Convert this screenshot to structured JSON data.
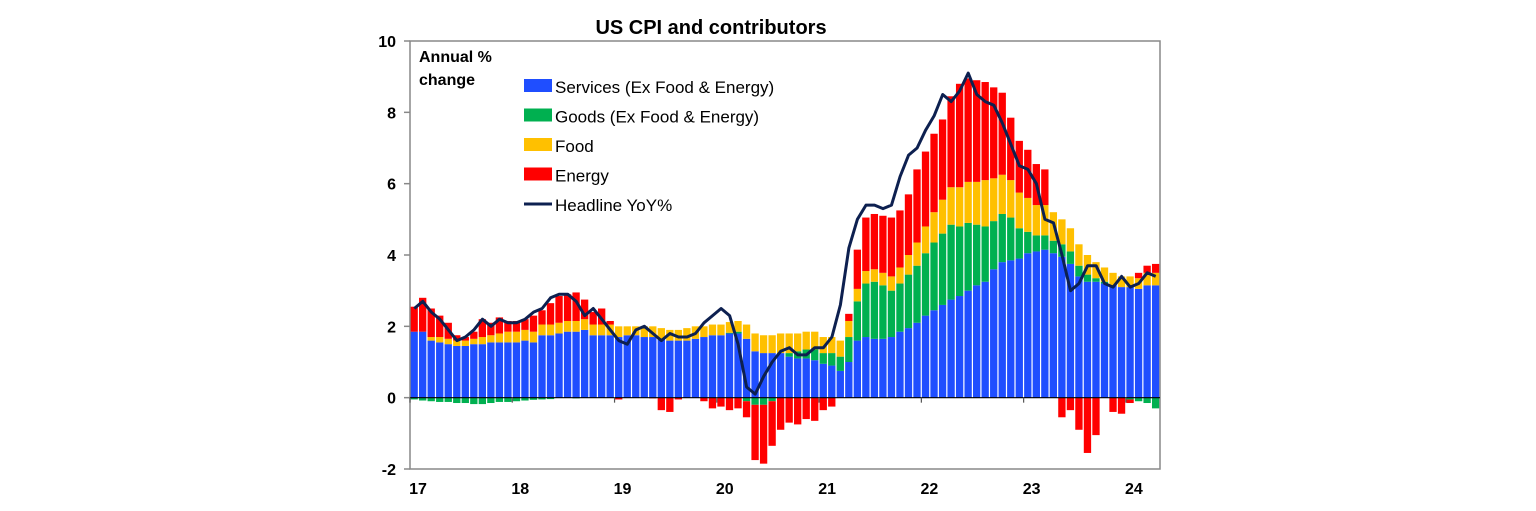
{
  "chart_data": {
    "type": "bar",
    "stacked": true,
    "title": "US CPI and contributors",
    "ylabel": "Annual % change",
    "xlabel": "",
    "ylim": [
      -2,
      10
    ],
    "yticks": [
      -2,
      0,
      2,
      4,
      6,
      8,
      10
    ],
    "xtick_labels": [
      "17",
      "18",
      "19",
      "20",
      "21",
      "22",
      "23",
      "24"
    ],
    "x_start": "2017-01",
    "frequency": "monthly",
    "legend_position": "top-left",
    "series": [
      {
        "name": "Services (Ex Food & Energy)",
        "color": "#1f4eff",
        "kind": "bar",
        "values": [
          1.85,
          1.85,
          1.6,
          1.55,
          1.5,
          1.45,
          1.45,
          1.5,
          1.5,
          1.55,
          1.55,
          1.55,
          1.55,
          1.6,
          1.55,
          1.75,
          1.75,
          1.8,
          1.85,
          1.85,
          1.9,
          1.75,
          1.75,
          1.75,
          1.7,
          1.75,
          1.75,
          1.7,
          1.7,
          1.65,
          1.6,
          1.6,
          1.6,
          1.65,
          1.7,
          1.75,
          1.75,
          1.8,
          1.8,
          1.65,
          1.3,
          1.25,
          1.25,
          1.25,
          1.15,
          1.1,
          1.1,
          1.05,
          0.95,
          0.9,
          0.75,
          1.0,
          1.6,
          1.7,
          1.65,
          1.65,
          1.7,
          1.85,
          1.95,
          2.1,
          2.3,
          2.45,
          2.6,
          2.75,
          2.85,
          3.0,
          3.15,
          3.25,
          3.6,
          3.8,
          3.85,
          3.9,
          4.05,
          4.1,
          4.15,
          4.05,
          3.95,
          3.75,
          3.4,
          3.25,
          3.25,
          3.2,
          3.15,
          3.1,
          3.1,
          3.05,
          3.15,
          3.15
        ]
      },
      {
        "name": "Goods (Ex Food & Energy)",
        "color": "#00b050",
        "kind": "bar",
        "values": [
          -0.05,
          -0.08,
          -0.1,
          -0.12,
          -0.12,
          -0.15,
          -0.15,
          -0.18,
          -0.18,
          -0.15,
          -0.12,
          -0.12,
          -0.1,
          -0.08,
          -0.06,
          -0.05,
          -0.04,
          0.0,
          0.0,
          -0.02,
          0.0,
          0.0,
          0.0,
          0.0,
          0.0,
          0.0,
          0.0,
          0.0,
          0.0,
          0.0,
          0.0,
          0.0,
          0.0,
          0.0,
          0.0,
          0.0,
          0.0,
          0.02,
          0.05,
          -0.1,
          -0.2,
          -0.2,
          -0.1,
          0.0,
          0.1,
          0.2,
          0.25,
          0.3,
          0.3,
          0.35,
          0.4,
          0.7,
          1.1,
          1.5,
          1.6,
          1.5,
          1.3,
          1.35,
          1.5,
          1.6,
          1.75,
          1.9,
          2.0,
          2.1,
          1.95,
          1.9,
          1.7,
          1.55,
          1.35,
          1.35,
          1.2,
          0.85,
          0.6,
          0.45,
          0.4,
          0.35,
          0.35,
          0.35,
          0.3,
          0.2,
          0.1,
          0.05,
          0.0,
          0.0,
          -0.05,
          -0.1,
          -0.15,
          -0.3
        ]
      },
      {
        "name": "Food",
        "color": "#ffc000",
        "kind": "bar",
        "values": [
          0.0,
          0.0,
          0.1,
          0.15,
          0.15,
          0.15,
          0.15,
          0.15,
          0.2,
          0.2,
          0.25,
          0.3,
          0.3,
          0.3,
          0.3,
          0.3,
          0.3,
          0.3,
          0.3,
          0.3,
          0.3,
          0.3,
          0.3,
          0.3,
          0.3,
          0.25,
          0.25,
          0.3,
          0.3,
          0.3,
          0.3,
          0.3,
          0.35,
          0.35,
          0.3,
          0.3,
          0.3,
          0.3,
          0.3,
          0.4,
          0.5,
          0.5,
          0.5,
          0.55,
          0.55,
          0.5,
          0.5,
          0.5,
          0.45,
          0.45,
          0.45,
          0.45,
          0.35,
          0.35,
          0.35,
          0.35,
          0.4,
          0.45,
          0.55,
          0.65,
          0.75,
          0.85,
          0.95,
          1.05,
          1.1,
          1.15,
          1.2,
          1.3,
          1.2,
          1.1,
          1.05,
          1.0,
          0.95,
          0.85,
          0.85,
          0.8,
          0.7,
          0.65,
          0.6,
          0.55,
          0.45,
          0.4,
          0.35,
          0.3,
          0.3,
          0.3,
          0.35,
          0.35
        ]
      },
      {
        "name": "Energy",
        "color": "#ff0000",
        "kind": "bar",
        "values": [
          0.7,
          0.95,
          0.8,
          0.6,
          0.45,
          0.15,
          0.1,
          0.2,
          0.5,
          0.35,
          0.45,
          0.3,
          0.3,
          0.3,
          0.45,
          0.4,
          0.6,
          0.75,
          0.75,
          0.8,
          0.55,
          0.35,
          0.45,
          0.1,
          -0.05,
          0.0,
          0.0,
          0.0,
          -0.02,
          -0.35,
          -0.4,
          -0.05,
          0.0,
          0.0,
          -0.1,
          -0.3,
          -0.25,
          -0.35,
          -0.3,
          -0.45,
          -1.55,
          -1.65,
          -1.25,
          -0.9,
          -0.7,
          -0.75,
          -0.6,
          -0.65,
          -0.35,
          -0.25,
          0.0,
          0.2,
          1.1,
          1.5,
          1.55,
          1.6,
          1.65,
          1.6,
          1.7,
          2.05,
          2.1,
          2.2,
          2.25,
          2.55,
          2.9,
          2.9,
          2.85,
          2.75,
          2.55,
          2.3,
          1.75,
          1.45,
          1.35,
          1.15,
          1.0,
          0.0,
          -0.55,
          -0.35,
          -0.9,
          -1.55,
          -1.05,
          0.0,
          -0.4,
          -0.45,
          -0.1,
          0.15,
          0.2,
          0.25
        ]
      },
      {
        "name": "Headline YoY%",
        "color": "#0d2050",
        "kind": "line",
        "values": [
          2.5,
          2.7,
          2.4,
          2.2,
          1.9,
          1.6,
          1.7,
          1.9,
          2.2,
          2.0,
          2.2,
          2.1,
          2.1,
          2.2,
          2.4,
          2.5,
          2.8,
          2.9,
          2.9,
          2.7,
          2.3,
          2.5,
          2.2,
          1.9,
          1.6,
          1.5,
          1.9,
          2.0,
          1.8,
          1.6,
          1.8,
          1.7,
          1.7,
          1.8,
          2.1,
          2.3,
          2.5,
          2.3,
          1.5,
          0.3,
          0.1,
          0.6,
          1.0,
          1.3,
          1.4,
          1.2,
          1.2,
          1.4,
          1.4,
          1.7,
          2.6,
          4.2,
          5.0,
          5.4,
          5.4,
          5.3,
          5.4,
          6.2,
          6.8,
          7.0,
          7.5,
          7.9,
          8.5,
          8.3,
          8.6,
          9.1,
          8.5,
          8.3,
          8.2,
          7.7,
          7.1,
          6.5,
          6.4,
          6.0,
          5.0,
          4.9,
          4.0,
          3.0,
          3.2,
          3.7,
          3.7,
          3.2,
          3.1,
          3.4,
          3.1,
          3.2,
          3.5,
          3.4
        ]
      }
    ]
  }
}
